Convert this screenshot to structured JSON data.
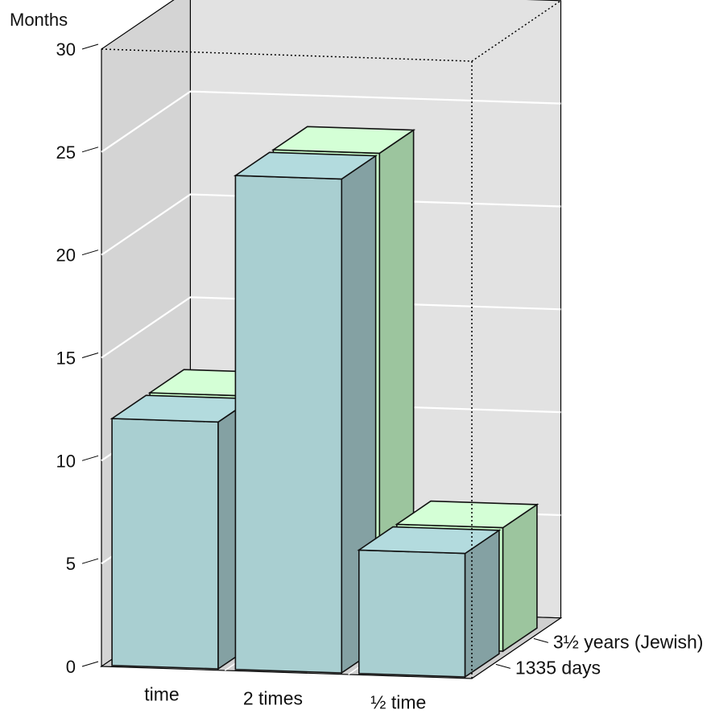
{
  "chart_data": {
    "type": "bar",
    "style": "3d-grouped",
    "ylabel": "Months",
    "ylim": [
      0,
      30
    ],
    "yticks": [
      0,
      5,
      10,
      15,
      20,
      25,
      30
    ],
    "categories": [
      "time",
      "2 times",
      "½ time"
    ],
    "series": [
      {
        "name": "1335 days",
        "values": [
          12,
          24,
          6
        ],
        "color": "#a9cfd1"
      },
      {
        "name": "3½ years (Jewish)",
        "values": [
          12,
          24,
          6
        ],
        "color": "#c8fcca"
      }
    ],
    "grid": true
  }
}
